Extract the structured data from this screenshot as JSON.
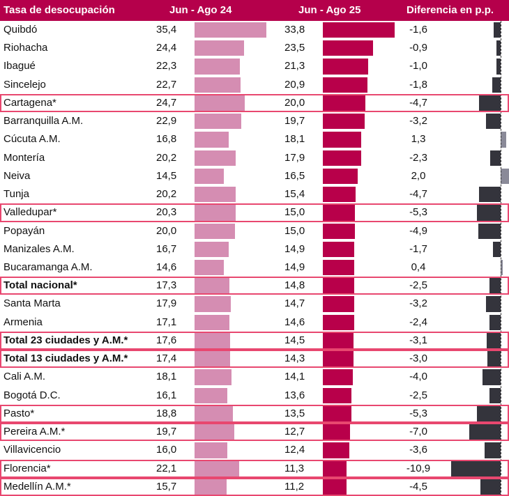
{
  "header": {
    "col_name": "Tasa de desocupación",
    "col_2024": "Jun - Ago 24",
    "col_2025": "Jun - Ago 25",
    "col_diff": "Diferencia en p.p."
  },
  "colors": {
    "header_bg": "#b5004b",
    "bar_2024": "#d58db2",
    "bar_2025": "#b8004a",
    "diff_negative": "#34343c",
    "diff_positive": "#8a8a98",
    "highlight_border": "#e8476f"
  },
  "chart_data": {
    "type": "table",
    "title": "Tasa de desocupación",
    "columns": [
      "Tasa de desocupación",
      "Jun - Ago 24",
      "Jun - Ago 25",
      "Diferencia en p.p."
    ],
    "rows": [
      {
        "name": "Quibdó",
        "v24": "35,4",
        "v25": "33,8",
        "diff": "-1,6",
        "n24": 35.4,
        "n25": 33.8,
        "nd": -1.6,
        "highlight": false,
        "bold": false
      },
      {
        "name": "Riohacha",
        "v24": "24,4",
        "v25": "23,5",
        "diff": "-0,9",
        "n24": 24.4,
        "n25": 23.5,
        "nd": -0.9,
        "highlight": false,
        "bold": false
      },
      {
        "name": "Ibagué",
        "v24": "22,3",
        "v25": "21,3",
        "diff": "-1,0",
        "n24": 22.3,
        "n25": 21.3,
        "nd": -1.0,
        "highlight": false,
        "bold": false
      },
      {
        "name": "Sincelejo",
        "v24": "22,7",
        "v25": "20,9",
        "diff": "-1,8",
        "n24": 22.7,
        "n25": 20.9,
        "nd": -1.8,
        "highlight": false,
        "bold": false
      },
      {
        "name": "Cartagena*",
        "v24": "24,7",
        "v25": "20,0",
        "diff": "-4,7",
        "n24": 24.7,
        "n25": 20.0,
        "nd": -4.7,
        "highlight": true,
        "bold": false
      },
      {
        "name": "Barranquilla A.M.",
        "v24": "22,9",
        "v25": "19,7",
        "diff": "-3,2",
        "n24": 22.9,
        "n25": 19.7,
        "nd": -3.2,
        "highlight": false,
        "bold": false
      },
      {
        "name": "Cúcuta A.M.",
        "v24": "16,8",
        "v25": "18,1",
        "diff": "1,3",
        "n24": 16.8,
        "n25": 18.1,
        "nd": 1.3,
        "highlight": false,
        "bold": false
      },
      {
        "name": "Montería",
        "v24": "20,2",
        "v25": "17,9",
        "diff": "-2,3",
        "n24": 20.2,
        "n25": 17.9,
        "nd": -2.3,
        "highlight": false,
        "bold": false
      },
      {
        "name": "Neiva",
        "v24": "14,5",
        "v25": "16,5",
        "diff": "2,0",
        "n24": 14.5,
        "n25": 16.5,
        "nd": 2.0,
        "highlight": false,
        "bold": false
      },
      {
        "name": "Tunja",
        "v24": "20,2",
        "v25": "15,4",
        "diff": "-4,7",
        "n24": 20.2,
        "n25": 15.4,
        "nd": -4.7,
        "highlight": false,
        "bold": false
      },
      {
        "name": "Valledupar*",
        "v24": "20,3",
        "v25": "15,0",
        "diff": "-5,3",
        "n24": 20.3,
        "n25": 15.0,
        "nd": -5.3,
        "highlight": true,
        "bold": false
      },
      {
        "name": "Popayán",
        "v24": "20,0",
        "v25": "15,0",
        "diff": "-4,9",
        "n24": 20.0,
        "n25": 15.0,
        "nd": -4.9,
        "highlight": false,
        "bold": false
      },
      {
        "name": "Manizales A.M.",
        "v24": "16,7",
        "v25": "14,9",
        "diff": "-1,7",
        "n24": 16.7,
        "n25": 14.9,
        "nd": -1.7,
        "highlight": false,
        "bold": false
      },
      {
        "name": "Bucaramanga A.M.",
        "v24": "14,6",
        "v25": "14,9",
        "diff": "0,4",
        "n24": 14.6,
        "n25": 14.9,
        "nd": 0.4,
        "highlight": false,
        "bold": false
      },
      {
        "name": "Total nacional*",
        "v24": "17,3",
        "v25": "14,8",
        "diff": "-2,5",
        "n24": 17.3,
        "n25": 14.8,
        "nd": -2.5,
        "highlight": true,
        "bold": true
      },
      {
        "name": "Santa Marta",
        "v24": "17,9",
        "v25": "14,7",
        "diff": "-3,2",
        "n24": 17.9,
        "n25": 14.7,
        "nd": -3.2,
        "highlight": false,
        "bold": false
      },
      {
        "name": "Armenia",
        "v24": "17,1",
        "v25": "14,6",
        "diff": "-2,4",
        "n24": 17.1,
        "n25": 14.6,
        "nd": -2.4,
        "highlight": false,
        "bold": false
      },
      {
        "name": "Total 23 ciudades y A.M.*",
        "v24": "17,6",
        "v25": "14,5",
        "diff": "-3,1",
        "n24": 17.6,
        "n25": 14.5,
        "nd": -3.1,
        "highlight": true,
        "bold": true
      },
      {
        "name": "Total 13 ciudades y A.M.*",
        "v24": "17,4",
        "v25": "14,3",
        "diff": "-3,0",
        "n24": 17.4,
        "n25": 14.3,
        "nd": -3.0,
        "highlight": true,
        "bold": true
      },
      {
        "name": "Cali A.M.",
        "v24": "18,1",
        "v25": "14,1",
        "diff": "-4,0",
        "n24": 18.1,
        "n25": 14.1,
        "nd": -4.0,
        "highlight": false,
        "bold": false
      },
      {
        "name": "Bogotá D.C.",
        "v24": "16,1",
        "v25": "13,6",
        "diff": "-2,5",
        "n24": 16.1,
        "n25": 13.6,
        "nd": -2.5,
        "highlight": false,
        "bold": false
      },
      {
        "name": "Pasto*",
        "v24": "18,8",
        "v25": "13,5",
        "diff": "-5,3",
        "n24": 18.8,
        "n25": 13.5,
        "nd": -5.3,
        "highlight": true,
        "bold": false
      },
      {
        "name": "Pereira A.M.*",
        "v24": "19,7",
        "v25": "12,7",
        "diff": "-7,0",
        "n24": 19.7,
        "n25": 12.7,
        "nd": -7.0,
        "highlight": true,
        "bold": false
      },
      {
        "name": "Villavicencio",
        "v24": "16,0",
        "v25": "12,4",
        "diff": "-3,6",
        "n24": 16.0,
        "n25": 12.4,
        "nd": -3.6,
        "highlight": false,
        "bold": false
      },
      {
        "name": "Florencia*",
        "v24": "22,1",
        "v25": "11,3",
        "diff": "-10,9",
        "n24": 22.1,
        "n25": 11.3,
        "nd": -10.9,
        "highlight": true,
        "bold": false
      },
      {
        "name": "Medellín A.M.*",
        "v24": "15,7",
        "v25": "11,2",
        "diff": "-4,5",
        "n24": 15.7,
        "n25": 11.2,
        "nd": -4.5,
        "highlight": true,
        "bold": false
      }
    ]
  }
}
